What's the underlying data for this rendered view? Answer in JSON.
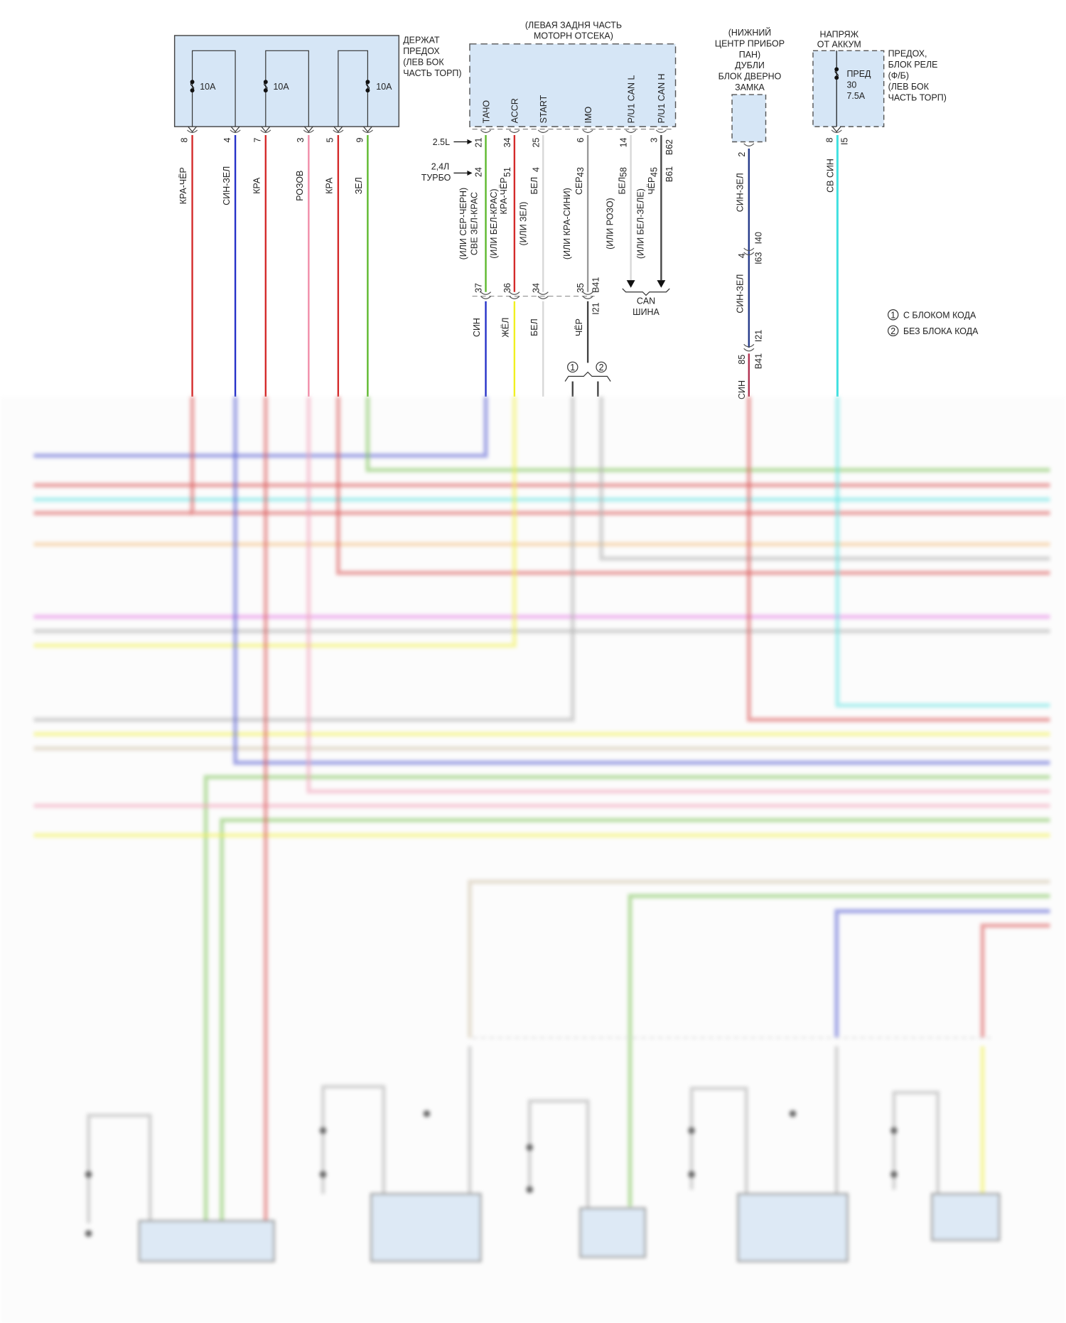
{
  "palette": {
    "red": "#d42a2a",
    "blue": "#2430c8",
    "navy": "#243a8a",
    "pink": "#f08ca8",
    "green": "#5cb82c",
    "gray": "#9a9a9a",
    "lightgray": "#d8d8d8",
    "dark": "#444444",
    "yellow": "#f0f020",
    "cyan": "#40e0e0",
    "orange": "#f4b060",
    "magenta": "#e060e0",
    "tan": "#c8b898",
    "box_fill": "#d6e6f6"
  },
  "fuse_holder": {
    "label_lines": [
      "ДЕРЖАТ",
      "ПРЕДОХ",
      "(ЛЕВ БОК",
      "ЧАСТЬ ТОРП)"
    ],
    "fuses": [
      "10A",
      "10A",
      "10A"
    ],
    "pins": [
      "8",
      "4",
      "7",
      "3",
      "5",
      "9"
    ],
    "wire_labels": [
      "КРА-ЧЁР",
      "СИН-ЗЕЛ",
      "КРА",
      "РОЗОВ",
      "КРА",
      "ЗЕЛ"
    ]
  },
  "ecu": {
    "location_lines": [
      "(ЛЕВАЯ ЗАДНЯ ЧАСТЬ",
      "МОТОРН ОТСЕКА)"
    ],
    "signals": [
      "ТАЧО",
      "ACCR",
      "START",
      "IMO",
      "P/U1 CAN L",
      "P/U1 CAN H"
    ],
    "engine_25": "2.5L",
    "engine_24": [
      "2,4Л",
      "ТУРБО"
    ],
    "pins_25": [
      "21",
      "34",
      "25",
      "6",
      "14",
      "3"
    ],
    "connector_25": "B62",
    "pins_24": [
      "24",
      "51",
      "4",
      "43",
      "58",
      "45"
    ],
    "connector_24": "B61",
    "wire_labels": [
      [
        "(ИЛИ СЕР-ЧЕРН)",
        "СВЕ ЗЕЛ-КРАС"
      ],
      [
        "(ИЛИ БЕЛ-КРАС)",
        "КРА-ЧЁР"
      ],
      [
        "(ИЛИ ЗЕЛ)",
        "БЕЛ"
      ],
      [
        "(ИЛИ КРА-СИНИ)",
        "СЕР"
      ],
      [
        "(ИЛИ РОЗО)",
        "БЕЛ"
      ],
      [
        "(ИЛИ БЕЛ-ЗЕЛЕ)",
        "ЧЁР"
      ]
    ],
    "can_bus": [
      "CAN",
      "ШИНА"
    ]
  },
  "inline_connector": {
    "pins": [
      "37",
      "36",
      "34",
      "35"
    ],
    "upper_id": "B41",
    "lower_id": "I21",
    "wire_labels": [
      "СИН",
      "ЖЁЛ",
      "БЕЛ",
      "ЧЁР"
    ],
    "variants": [
      "1",
      "2"
    ]
  },
  "door_lock_unit": {
    "label_lines": [
      "(НИЖНИЙ",
      "ЦЕНТР ПРИБОР",
      "ПАН)",
      "ДУБЛИ",
      "БЛОК ДВЕРНО",
      "ЗАМКА"
    ],
    "pin": "2",
    "wire_label_1": "СИН-ЗЕЛ",
    "conn1_upper": "I40",
    "conn1_pin": "4",
    "conn1_lower": "I63",
    "wire_label_2": "СИН-ЗЕЛ",
    "conn2_upper": "I21",
    "conn2_pin": "85",
    "conn2_lower": "B41",
    "wire_label_3": "СИН"
  },
  "relay_box": {
    "supply_lines": [
      "НАПРЯЖ",
      "ОТ АККУМ"
    ],
    "fuse_lines": [
      "ПРЕД",
      "30",
      "7.5A"
    ],
    "label_lines": [
      "ПРЕДОХ,",
      "БЛОК РЕЛЕ",
      "(Ф/Б)",
      "(ЛЕВ БОК",
      "ЧАСТЬ ТОРП)"
    ],
    "pin": "8",
    "connector": "I5",
    "wire_label": "СВ СИН"
  },
  "legend": [
    {
      "marker": "1",
      "text": "С БЛОКОМ КОДА"
    },
    {
      "marker": "2",
      "text": "БЕЗ БЛОКА КОДА"
    }
  ]
}
